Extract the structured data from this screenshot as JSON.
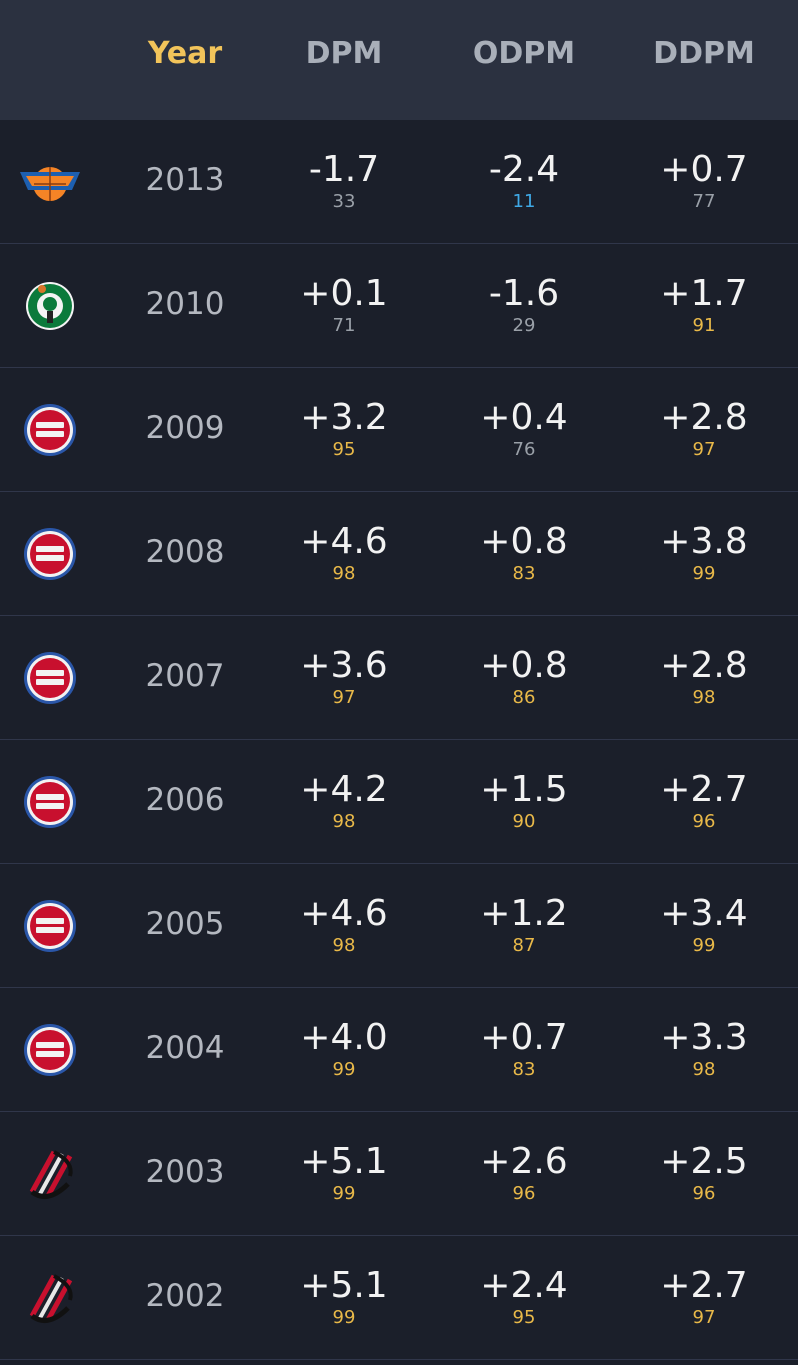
{
  "header": {
    "columns": [
      "Year",
      "DPM",
      "ODPM",
      "DDPM"
    ]
  },
  "rows": [
    {
      "year": "2013",
      "dpm": {
        "value": "-1.7",
        "rank": "33",
        "rank_color": "#9aa0a8"
      },
      "odpm": {
        "value": "-2.4",
        "rank": "11",
        "rank_color": "#3fa9e6"
      },
      "ddpm": {
        "value": "+0.7",
        "rank": "77",
        "rank_color": "#9aa0a8"
      }
    },
    {
      "year": "2010",
      "dpm": {
        "value": "+0.1",
        "rank": "71",
        "rank_color": "#9aa0a8"
      },
      "odpm": {
        "value": "-1.6",
        "rank": "29",
        "rank_color": "#9aa0a8"
      },
      "ddpm": {
        "value": "+1.7",
        "rank": "91",
        "rank_color": "#e9b949"
      }
    },
    {
      "year": "2009",
      "dpm": {
        "value": "+3.2",
        "rank": "95",
        "rank_color": "#e9b949"
      },
      "odpm": {
        "value": "+0.4",
        "rank": "76",
        "rank_color": "#9aa0a8"
      },
      "ddpm": {
        "value": "+2.8",
        "rank": "97",
        "rank_color": "#e9b949"
      }
    },
    {
      "year": "2008",
      "dpm": {
        "value": "+4.6",
        "rank": "98",
        "rank_color": "#e9b949"
      },
      "odpm": {
        "value": "+0.8",
        "rank": "83",
        "rank_color": "#e9b949"
      },
      "ddpm": {
        "value": "+3.8",
        "rank": "99",
        "rank_color": "#e9b949"
      }
    },
    {
      "year": "2007",
      "dpm": {
        "value": "+3.6",
        "rank": "97",
        "rank_color": "#e9b949"
      },
      "odpm": {
        "value": "+0.8",
        "rank": "86",
        "rank_color": "#e9b949"
      },
      "ddpm": {
        "value": "+2.8",
        "rank": "98",
        "rank_color": "#e9b949"
      }
    },
    {
      "year": "2006",
      "dpm": {
        "value": "+4.2",
        "rank": "98",
        "rank_color": "#e9b949"
      },
      "odpm": {
        "value": "+1.5",
        "rank": "90",
        "rank_color": "#e9b949"
      },
      "ddpm": {
        "value": "+2.7",
        "rank": "96",
        "rank_color": "#e9b949"
      }
    },
    {
      "year": "2005",
      "dpm": {
        "value": "+4.6",
        "rank": "98",
        "rank_color": "#e9b949"
      },
      "odpm": {
        "value": "+1.2",
        "rank": "87",
        "rank_color": "#e9b949"
      },
      "ddpm": {
        "value": "+3.4",
        "rank": "99",
        "rank_color": "#e9b949"
      }
    },
    {
      "year": "2004",
      "dpm": {
        "value": "+4.0",
        "rank": "99",
        "rank_color": "#e9b949"
      },
      "odpm": {
        "value": "+0.7",
        "rank": "83",
        "rank_color": "#e9b949"
      },
      "ddpm": {
        "value": "+3.3",
        "rank": "98",
        "rank_color": "#e9b949"
      }
    },
    {
      "year": "2003",
      "dpm": {
        "value": "+5.1",
        "rank": "99",
        "rank_color": "#e9b949"
      },
      "odpm": {
        "value": "+2.6",
        "rank": "96",
        "rank_color": "#e9b949"
      },
      "ddpm": {
        "value": "+2.5",
        "rank": "96",
        "rank_color": "#e9b949"
      }
    },
    {
      "year": "2002",
      "dpm": {
        "value": "+5.1",
        "rank": "99",
        "rank_color": "#e9b949"
      },
      "odpm": {
        "value": "+2.4",
        "rank": "95",
        "rank_color": "#e9b949"
      },
      "ddpm": {
        "value": "+2.7",
        "rank": "97",
        "rank_color": "#e9b949"
      }
    }
  ]
}
